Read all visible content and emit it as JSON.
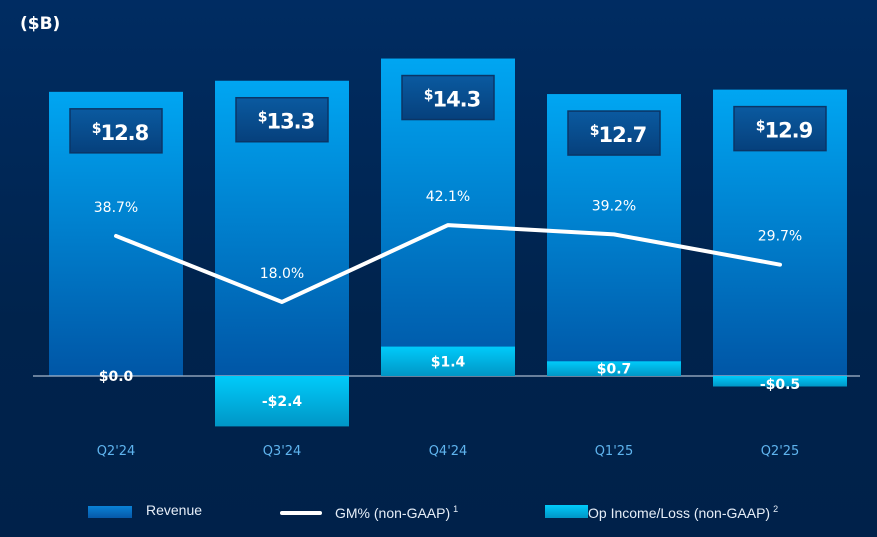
{
  "chart_data": {
    "type": "bar",
    "unit_label": "($B)",
    "categories": [
      "Q2'24",
      "Q3'24",
      "Q4'24",
      "Q1'25",
      "Q2'25"
    ],
    "series": [
      {
        "name": "Revenue",
        "kind": "bar",
        "values": [
          12.8,
          13.3,
          14.3,
          12.7,
          12.9
        ],
        "labels": [
          "12.8",
          "13.3",
          "14.3",
          "12.7",
          "12.9"
        ],
        "color": "#0090e0"
      },
      {
        "name": "GM% (non-GAAP)",
        "superscript": "1",
        "kind": "line",
        "values": [
          38.7,
          18.0,
          42.1,
          39.2,
          29.7
        ],
        "labels": [
          "38.7%",
          "18.0%",
          "42.1%",
          "39.2%",
          "29.7%"
        ],
        "color": "#ffffff"
      },
      {
        "name": "Op Income/Loss (non-GAAP)",
        "superscript": "2",
        "kind": "bar",
        "values": [
          0.0,
          -2.4,
          1.4,
          0.7,
          -0.5
        ],
        "labels": [
          "$0.0",
          "-$2.4",
          "$1.4",
          "$0.7",
          "-$0.5"
        ],
        "color": "#00c4f4"
      }
    ],
    "currency_symbol": "$",
    "legend_position": "bottom",
    "grid": false
  }
}
